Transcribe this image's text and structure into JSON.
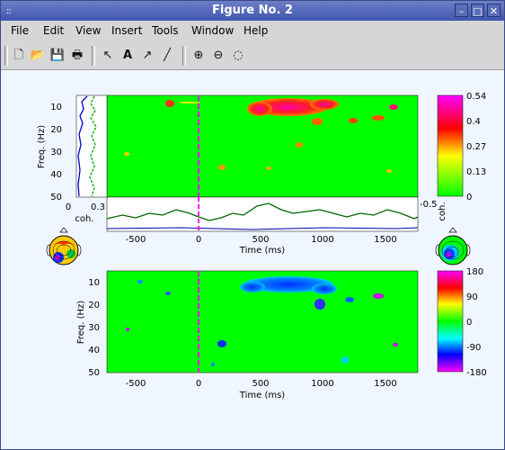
{
  "window": {
    "title": "Figure No. 2",
    "menu_glyph": "::",
    "controls": {
      "minimize": "–",
      "maximize": "□",
      "close": "✕"
    }
  },
  "menubar": {
    "items": [
      "File",
      "Edit",
      "View",
      "Insert",
      "Tools",
      "Window",
      "Help"
    ]
  },
  "toolbar": {
    "tools": [
      {
        "name": "new-figure-icon",
        "glyph": "🗋"
      },
      {
        "name": "open-file-icon",
        "glyph": "📂"
      },
      {
        "name": "save-icon",
        "glyph": "💾"
      },
      {
        "name": "print-icon",
        "glyph": "🖶"
      },
      {
        "name": "arrow-select-icon",
        "glyph": "↖"
      },
      {
        "name": "insert-text-icon",
        "glyph": "A"
      },
      {
        "name": "insert-arrow-icon",
        "glyph": "↗"
      },
      {
        "name": "insert-line-icon",
        "glyph": "╱"
      },
      {
        "name": "zoom-in-icon",
        "glyph": "⊕"
      },
      {
        "name": "zoom-out-icon",
        "glyph": "⊖"
      },
      {
        "name": "rotate-icon",
        "glyph": "◌"
      }
    ]
  },
  "colors": {
    "plot_background": "#00ff00",
    "dashed_marker": "#ff00ff",
    "coherence_trace": "#006600",
    "baseline_trace": "#0000aa",
    "freq_profile_blue": "#0000cc",
    "freq_profile_green": "#00aa00"
  },
  "chart_data": [
    {
      "type": "heatmap",
      "panel": "coherence",
      "ylabel": "Freq. (Hz)",
      "yticks": [
        "10",
        "20",
        "30",
        "40",
        "50"
      ],
      "ylim": [
        5,
        50
      ],
      "xlim": [
        -750,
        1750
      ],
      "marker_time": 0,
      "colorbar": {
        "ticks": [
          "0.54",
          "0.4",
          "0.27",
          "0.13",
          "0"
        ],
        "range": [
          0,
          0.54
        ],
        "label": "coh."
      }
    },
    {
      "type": "line",
      "panel": "frequency-profile",
      "xlabel": "coh.",
      "xticks": [
        "0",
        "0.3"
      ],
      "xlim": [
        0,
        0.3
      ]
    },
    {
      "type": "line",
      "panel": "coherence-time-course",
      "xlabel": "Time (ms)",
      "xticks": [
        "-500",
        "0",
        "500",
        "1000",
        "1500"
      ],
      "right_tick": "-0.5"
    },
    {
      "type": "heatmap",
      "panel": "phase",
      "xlabel": "Time (ms)",
      "ylabel": "Freq. (Hz)",
      "yticks": [
        "10",
        "20",
        "30",
        "40",
        "50"
      ],
      "xticks": [
        "-500",
        "0",
        "500",
        "1000",
        "1500"
      ],
      "ylim": [
        5,
        50
      ],
      "xlim": [
        -750,
        1750
      ],
      "marker_time": 0,
      "colorbar": {
        "ticks": [
          "180",
          "90",
          "0",
          "-90",
          "-180"
        ],
        "range": [
          -180,
          180
        ]
      }
    }
  ]
}
